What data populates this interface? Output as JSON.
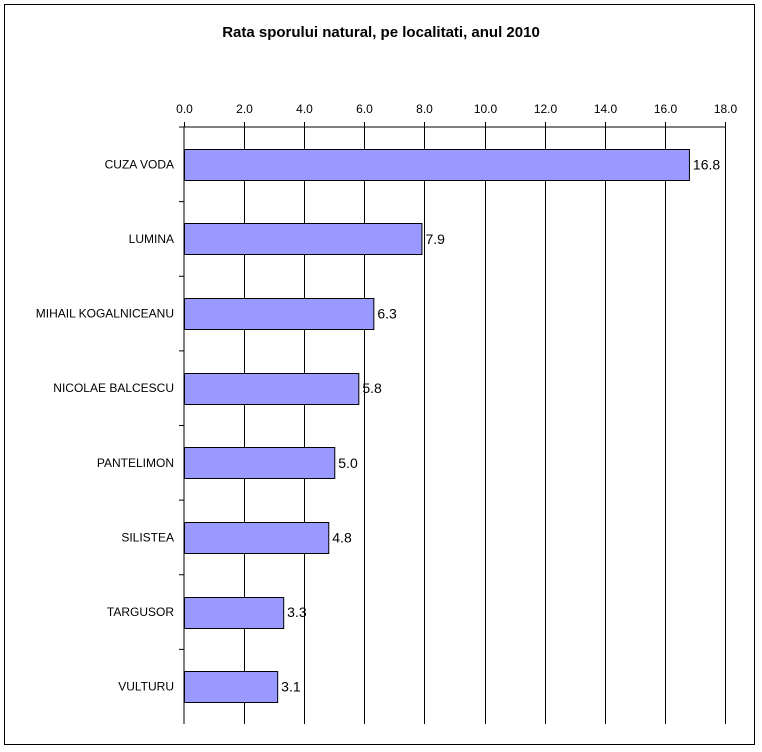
{
  "chart_data": {
    "type": "bar",
    "orientation": "horizontal",
    "title": "Rata sporului natural, pe localitati, anul 2010",
    "categories": [
      "CUZA VODA",
      "LUMINA",
      "MIHAIL KOGALNICEANU",
      "NICOLAE BALCESCU",
      "PANTELIMON",
      "SILISTEA",
      "TARGUSOR",
      "VULTURU"
    ],
    "values": [
      16.8,
      7.9,
      6.3,
      5.8,
      5.0,
      4.8,
      3.3,
      3.1
    ],
    "value_labels": [
      "16.8",
      "7.9",
      "6.3",
      "5.8",
      "5.0",
      "4.8",
      "3.3",
      "3.1"
    ],
    "xlim": [
      0,
      18
    ],
    "x_ticks": [
      "0.0",
      "2.0",
      "4.0",
      "6.0",
      "8.0",
      "10.0",
      "12.0",
      "14.0",
      "16.0",
      "18.0"
    ],
    "x_axis_position": "top",
    "grid": true,
    "bar_color": "#9999ff"
  }
}
